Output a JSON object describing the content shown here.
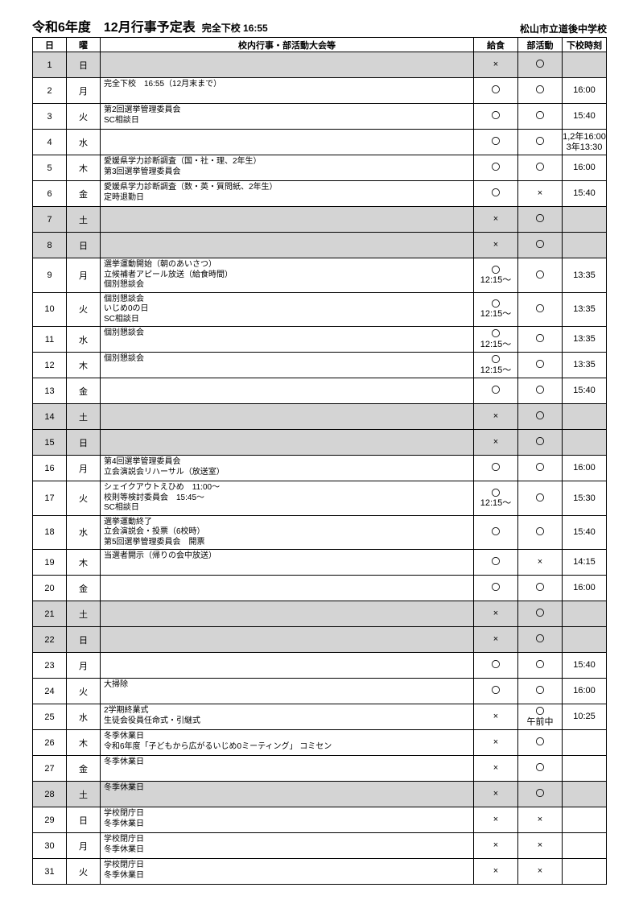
{
  "header": {
    "title_main": "令和6年度　12月行事予定表",
    "title_sub": "完全下校 16:55",
    "school": "松山市立道後中学校"
  },
  "columns": {
    "date": "日",
    "day": "曜",
    "event": "校内行事・部活動大会等",
    "lunch": "給食",
    "club": "部活動",
    "time": "下校時刻"
  },
  "rows": [
    {
      "date": "1",
      "day": "日",
      "event": "",
      "lunch": "×",
      "club": "〇",
      "time": "",
      "shaded": true
    },
    {
      "date": "2",
      "day": "月",
      "event": "完全下校　16:55（12月末まで）",
      "lunch": "〇",
      "club": "〇",
      "time": "16:00"
    },
    {
      "date": "3",
      "day": "火",
      "event": "第2回選挙管理委員会\nSC相談日",
      "lunch": "〇",
      "club": "〇",
      "time": "15:40"
    },
    {
      "date": "4",
      "day": "水",
      "event": "",
      "lunch": "〇",
      "club": "〇",
      "time": "1,2年16:00\n3年13:30"
    },
    {
      "date": "5",
      "day": "木",
      "event": "愛媛県学力診断調査（国・社・理、2年生）\n第3回選挙管理委員会",
      "lunch": "〇",
      "club": "〇",
      "time": "16:00"
    },
    {
      "date": "6",
      "day": "金",
      "event": "愛媛県学力診断調査（数・英・質問紙、2年生）\n定時退勤日",
      "lunch": "〇",
      "club": "×",
      "time": "15:40"
    },
    {
      "date": "7",
      "day": "土",
      "event": "",
      "lunch": "×",
      "club": "〇",
      "time": "",
      "shaded": true
    },
    {
      "date": "8",
      "day": "日",
      "event": "",
      "lunch": "×",
      "club": "〇",
      "time": "",
      "shaded": true
    },
    {
      "date": "9",
      "day": "月",
      "event": "選挙運動開始（朝のあいさつ）\n立候補者アピール放送（給食時間）\n個別懇談会",
      "lunch": "〇\n12:15～",
      "club": "〇",
      "time": "13:35"
    },
    {
      "date": "10",
      "day": "火",
      "event": "個別懇談会\nいじめ0の日\nSC相談日",
      "lunch": "〇\n12:15～",
      "club": "〇",
      "time": "13:35"
    },
    {
      "date": "11",
      "day": "水",
      "event": "個別懇談会",
      "lunch": "〇\n12:15～",
      "club": "〇",
      "time": "13:35"
    },
    {
      "date": "12",
      "day": "木",
      "event": "個別懇談会",
      "lunch": "〇\n12:15～",
      "club": "〇",
      "time": "13:35"
    },
    {
      "date": "13",
      "day": "金",
      "event": "",
      "lunch": "〇",
      "club": "〇",
      "time": "15:40"
    },
    {
      "date": "14",
      "day": "土",
      "event": "",
      "lunch": "×",
      "club": "〇",
      "time": "",
      "shaded": true
    },
    {
      "date": "15",
      "day": "日",
      "event": "",
      "lunch": "×",
      "club": "〇",
      "time": "",
      "shaded": true
    },
    {
      "date": "16",
      "day": "月",
      "event": "第4回選挙管理委員会\n立会演説会リハーサル（放送室）",
      "lunch": "〇",
      "club": "〇",
      "time": "16:00"
    },
    {
      "date": "17",
      "day": "火",
      "event": "シェイクアウトえひめ　11:00～\n校則等検討委員会　15:45～\nSC相談日",
      "lunch": "〇\n12:15～",
      "club": "〇",
      "time": "15:30"
    },
    {
      "date": "18",
      "day": "水",
      "event": "選挙運動終了\n立会演説会・投票（6校時）\n第5回選挙管理委員会　開票",
      "lunch": "〇",
      "club": "〇",
      "time": "15:40"
    },
    {
      "date": "19",
      "day": "木",
      "event": "当選者開示（帰りの会中放送）",
      "lunch": "〇",
      "club": "×",
      "time": "14:15"
    },
    {
      "date": "20",
      "day": "金",
      "event": "",
      "lunch": "〇",
      "club": "〇",
      "time": "16:00"
    },
    {
      "date": "21",
      "day": "土",
      "event": "",
      "lunch": "×",
      "club": "〇",
      "time": "",
      "shaded": true
    },
    {
      "date": "22",
      "day": "日",
      "event": "",
      "lunch": "×",
      "club": "〇",
      "time": "",
      "shaded": true
    },
    {
      "date": "23",
      "day": "月",
      "event": "",
      "lunch": "〇",
      "club": "〇",
      "time": "15:40"
    },
    {
      "date": "24",
      "day": "火",
      "event": "大掃除",
      "lunch": "〇",
      "club": "〇",
      "time": "16:00"
    },
    {
      "date": "25",
      "day": "水",
      "event": "2学期終業式\n生徒会役員任命式・引継式",
      "lunch": "×",
      "club": "〇\n午前中",
      "time": "10:25"
    },
    {
      "date": "26",
      "day": "木",
      "event": "冬季休業日\n令和6年度「子どもから広がるいじめ0ミーティング」 コミセン",
      "lunch": "×",
      "club": "〇",
      "time": ""
    },
    {
      "date": "27",
      "day": "金",
      "event": "冬季休業日",
      "lunch": "×",
      "club": "〇",
      "time": ""
    },
    {
      "date": "28",
      "day": "土",
      "event": "冬季休業日",
      "lunch": "×",
      "club": "〇",
      "time": "",
      "shaded": true
    },
    {
      "date": "29",
      "day": "日",
      "event": "学校閉庁日\n冬季休業日",
      "lunch": "×",
      "club": "×",
      "time": ""
    },
    {
      "date": "30",
      "day": "月",
      "event": "学校閉庁日\n冬季休業日",
      "lunch": "×",
      "club": "×",
      "time": ""
    },
    {
      "date": "31",
      "day": "火",
      "event": "学校閉庁日\n冬季休業日",
      "lunch": "×",
      "club": "×",
      "time": ""
    }
  ]
}
